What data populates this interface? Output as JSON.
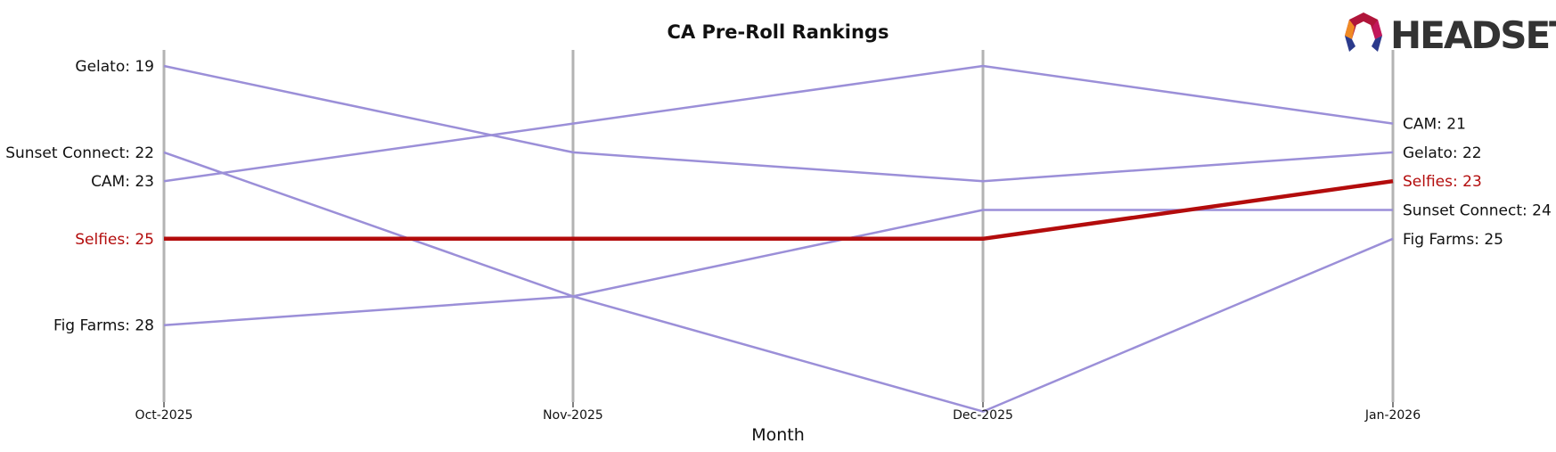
{
  "chart_data": {
    "type": "line",
    "title": "CA Pre-Roll Rankings",
    "xlabel": "Month",
    "ylabel": "",
    "categories": [
      "Oct-2025",
      "Nov-2025",
      "Dec-2025",
      "Jan-2026"
    ],
    "y_inverted": true,
    "ylim": [
      31.5,
      19
    ],
    "grid": false,
    "highlight_series": "Selfies",
    "colors": {
      "default": "#9b8fd8",
      "highlight": "#b30c0c",
      "axis": "#b3b3b3"
    },
    "series": [
      {
        "name": "Gelato",
        "values": [
          19,
          22,
          23,
          22
        ],
        "start_label": "Gelato: 19",
        "end_label": "Gelato: 22"
      },
      {
        "name": "Sunset Connect",
        "values": [
          22,
          27,
          24,
          24
        ],
        "start_label": "Sunset Connect: 22",
        "end_label": "Sunset Connect: 24"
      },
      {
        "name": "CAM",
        "values": [
          23,
          21,
          19,
          21
        ],
        "start_label": "CAM: 23",
        "end_label": "CAM: 21"
      },
      {
        "name": "Selfies",
        "values": [
          25,
          25,
          25,
          23
        ],
        "start_label": "Selfies: 25",
        "end_label": "Selfies: 23"
      },
      {
        "name": "Fig Farms",
        "values": [
          28,
          27,
          31,
          25
        ],
        "start_label": "Fig Farms: 28",
        "end_label": "Fig Farms: 25"
      }
    ]
  },
  "logo": {
    "text": "HEADSET",
    "icon": "headset-logo-icon"
  }
}
